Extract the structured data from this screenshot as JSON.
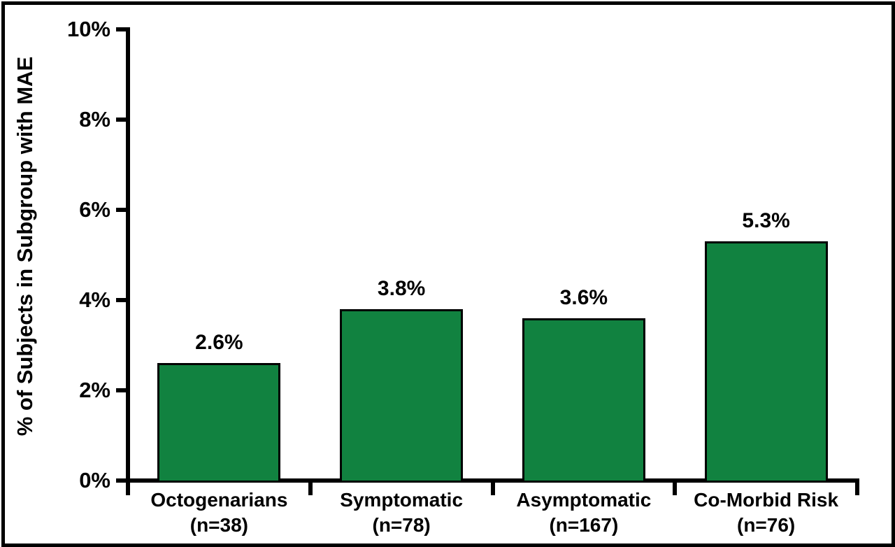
{
  "figure": {
    "background": "#ffffff",
    "frame_color": "#000000",
    "text_color": "#000000"
  },
  "chart_data": {
    "type": "bar",
    "title": "",
    "xlabel": "",
    "ylabel": "% of Subjects in Subgroup with MAE",
    "ylim": [
      0,
      10
    ],
    "ytick_step": 2,
    "ytick_labels": [
      "0%",
      "2%",
      "4%",
      "6%",
      "8%",
      "10%"
    ],
    "grid": false,
    "legend": "none",
    "bar_color": "#118240",
    "bar_border_color": "#000000",
    "categories": [
      "Octogenarians",
      "Symptomatic",
      "Asymptomatic",
      "Co-Morbid Risk"
    ],
    "category_sublabels": [
      "(n=38)",
      "(n=78)",
      "(n=167)",
      "(n=76)"
    ],
    "values": [
      2.6,
      3.8,
      3.6,
      5.3
    ],
    "value_labels": [
      "2.6%",
      "3.8%",
      "3.6%",
      "5.3%"
    ]
  }
}
